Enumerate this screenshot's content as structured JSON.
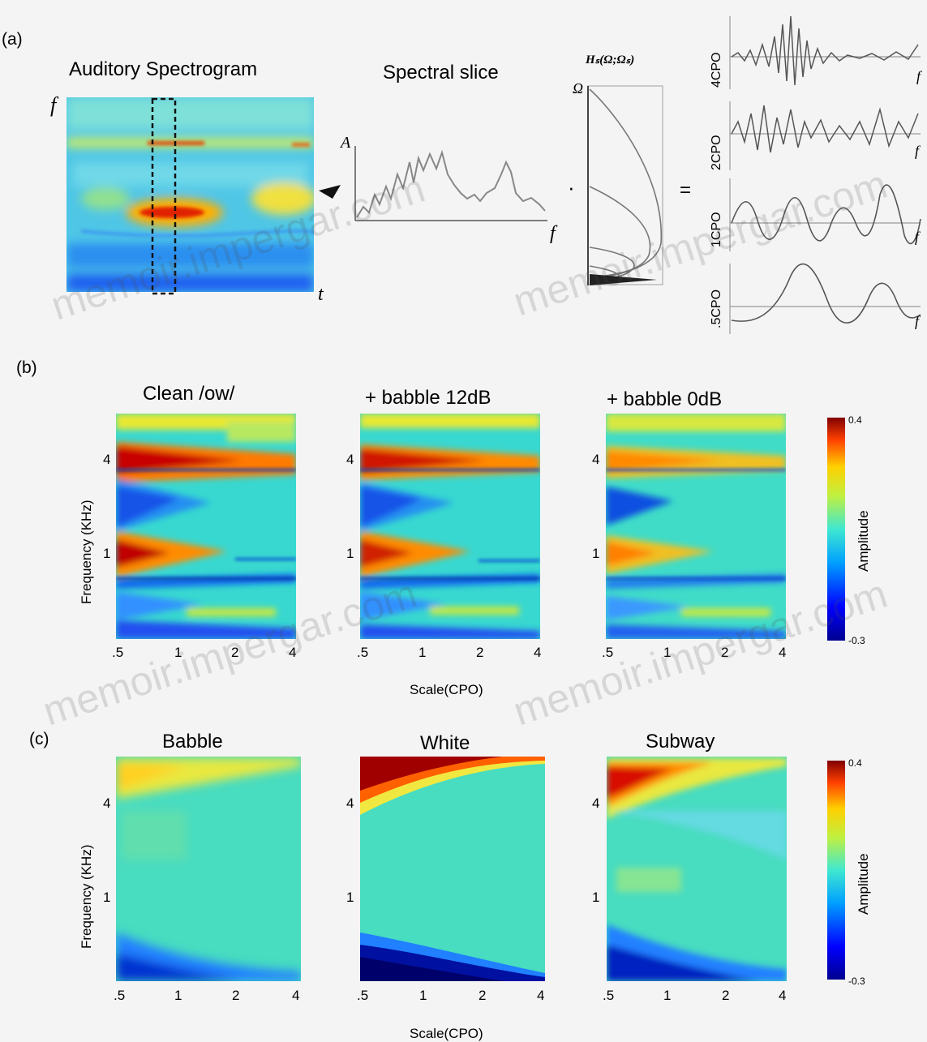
{
  "panels": {
    "a": {
      "label": "(a)",
      "spectrogram_title": "Auditory Spectrogram",
      "spectrogram_y": "f",
      "spectrogram_x": "t",
      "slice_title": "Spectral slice",
      "slice_y": "A",
      "slice_x": "f",
      "filter_title": "Hₛ(Ω;Ωₛ)",
      "filter_y": "Ω",
      "multiply": "·",
      "equals": "=",
      "outputs": [
        "4CPO",
        "2CPO",
        "1CPO",
        ".5CPO"
      ],
      "output_x": "f"
    },
    "b": {
      "label": "(b)",
      "titles": [
        "Clean /ow/",
        "+ babble 12dB",
        "+ babble 0dB"
      ],
      "ylabel": "Frequency (KHz)",
      "xlabel": "Scale(CPO)",
      "yticks": [
        "4",
        "1"
      ],
      "xticks": [
        ".5",
        "1",
        "2",
        "4"
      ],
      "colorbar": {
        "label": "Amplitude",
        "max": "0.4",
        "min": "-0.3"
      }
    },
    "c": {
      "label": "(c)",
      "titles": [
        "Babble",
        "White",
        "Subway"
      ],
      "ylabel": "Frequency (KHz)",
      "xlabel": "Scale(CPO)",
      "yticks": [
        "4",
        "1"
      ],
      "xticks": [
        ".5",
        "1",
        "2",
        "4"
      ],
      "colorbar": {
        "label": "Amplitude",
        "max": "0.4",
        "min": "-0.3"
      }
    }
  },
  "watermark": "memoir.impergar.com",
  "colors": {
    "jet_dark_blue": "#00008f",
    "jet_blue": "#0060ff",
    "jet_cyan": "#30e0e0",
    "jet_teal_bg": "#3cd9c4",
    "jet_yellow": "#f5e23a",
    "jet_orange": "#ff8a00",
    "jet_red": "#d01010",
    "jet_dark_red": "#800000"
  }
}
